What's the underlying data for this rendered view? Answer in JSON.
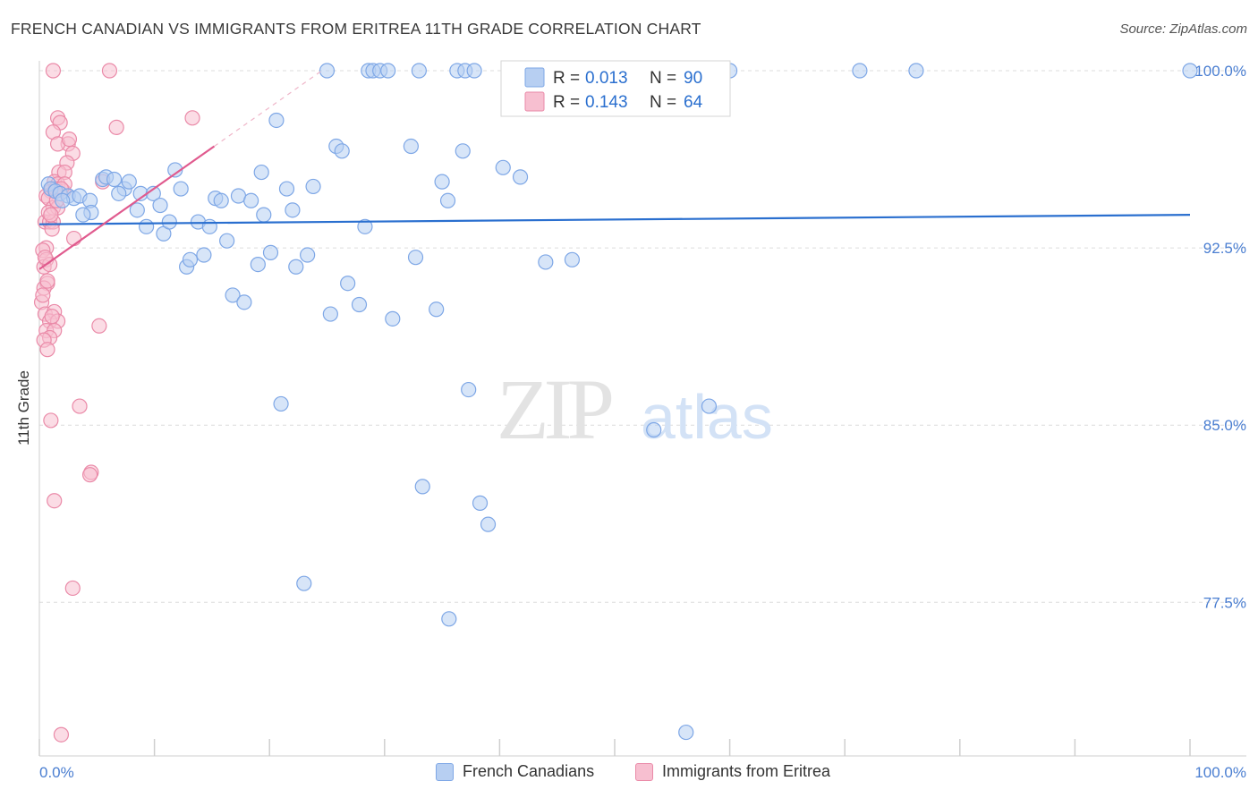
{
  "header": {
    "title": "FRENCH CANADIAN VS IMMIGRANTS FROM ERITREA 11TH GRADE CORRELATION CHART",
    "source": "Source: ZipAtlas.com"
  },
  "watermark": {
    "zip": "ZIP",
    "atlas": "atlas"
  },
  "colors": {
    "blue_fill": "#b7cff2",
    "blue_stroke": "#7ea7e6",
    "blue_line": "#2a6fcf",
    "pink_fill": "#f7bfd0",
    "pink_stroke": "#ea8aa8",
    "pink_line": "#e05a8e",
    "tick_label": "#4a7ed1",
    "grid": "#dcdcdc"
  },
  "legend_top": [
    {
      "r_label": "R =",
      "r_value": "0.013",
      "n_label": "N =",
      "n_value": "90"
    },
    {
      "r_label": "R =",
      "r_value": "0.143",
      "n_label": "N =",
      "n_value": "64"
    }
  ],
  "chart_data": {
    "type": "scatter",
    "xlabel": "",
    "ylabel": "11th Grade",
    "xlim": [
      0,
      100
    ],
    "ylim": [
      71.5,
      100.8
    ],
    "x_tick_labels": [
      "0.0%",
      "100.0%"
    ],
    "y_ticks": [
      {
        "value": 100.0,
        "label": "100.0%"
      },
      {
        "value": 92.5,
        "label": "92.5%"
      },
      {
        "value": 85.0,
        "label": "85.0%"
      },
      {
        "value": 77.5,
        "label": "77.5%"
      }
    ],
    "grid": true,
    "legend_position": "top-center",
    "series": [
      {
        "name": "French Canadians",
        "color": "blue",
        "trend": {
          "x": [
            0,
            100
          ],
          "y": [
            93.5,
            93.9
          ]
        },
        "points": [
          [
            0.8,
            95.2
          ],
          [
            1.0,
            95.0
          ],
          [
            1.4,
            94.9
          ],
          [
            1.8,
            94.8
          ],
          [
            2.5,
            94.7
          ],
          [
            3.0,
            94.6
          ],
          [
            3.5,
            94.7
          ],
          [
            4.4,
            94.5
          ],
          [
            4.5,
            94.0
          ],
          [
            5.5,
            95.4
          ],
          [
            5.8,
            95.5
          ],
          [
            6.5,
            95.4
          ],
          [
            7.4,
            95.0
          ],
          [
            7.8,
            95.3
          ],
          [
            8.5,
            94.1
          ],
          [
            8.8,
            94.8
          ],
          [
            9.3,
            93.4
          ],
          [
            9.9,
            94.8
          ],
          [
            10.5,
            94.3
          ],
          [
            10.8,
            93.1
          ],
          [
            11.3,
            93.6
          ],
          [
            11.8,
            95.8
          ],
          [
            12.3,
            95.0
          ],
          [
            12.8,
            91.7
          ],
          [
            13.1,
            92.0
          ],
          [
            13.8,
            93.6
          ],
          [
            14.3,
            92.2
          ],
          [
            14.8,
            93.4
          ],
          [
            15.3,
            94.6
          ],
          [
            15.8,
            94.5
          ],
          [
            16.3,
            92.8
          ],
          [
            16.8,
            90.5
          ],
          [
            17.3,
            94.7
          ],
          [
            17.8,
            90.2
          ],
          [
            18.4,
            94.5
          ],
          [
            19.0,
            91.8
          ],
          [
            19.3,
            95.7
          ],
          [
            19.5,
            93.9
          ],
          [
            20.1,
            92.3
          ],
          [
            20.6,
            97.9
          ],
          [
            21.0,
            85.9
          ],
          [
            21.5,
            95.0
          ],
          [
            22.0,
            94.1
          ],
          [
            22.3,
            91.7
          ],
          [
            23.0,
            78.3
          ],
          [
            23.3,
            92.2
          ],
          [
            23.8,
            95.1
          ],
          [
            25.0,
            100.0
          ],
          [
            25.3,
            89.7
          ],
          [
            25.8,
            96.8
          ],
          [
            26.3,
            96.6
          ],
          [
            26.8,
            91.0
          ],
          [
            27.8,
            90.1
          ],
          [
            28.3,
            93.4
          ],
          [
            28.6,
            100.0
          ],
          [
            29.0,
            100.0
          ],
          [
            29.6,
            100.0
          ],
          [
            30.3,
            100.0
          ],
          [
            30.7,
            89.5
          ],
          [
            32.3,
            96.8
          ],
          [
            32.7,
            92.1
          ],
          [
            33.0,
            100.0
          ],
          [
            33.3,
            82.4
          ],
          [
            34.5,
            89.9
          ],
          [
            35.0,
            95.3
          ],
          [
            35.5,
            94.5
          ],
          [
            36.3,
            100.0
          ],
          [
            36.8,
            96.6
          ],
          [
            37.0,
            100.0
          ],
          [
            37.3,
            86.5
          ],
          [
            37.8,
            100.0
          ],
          [
            38.3,
            81.7
          ],
          [
            39.0,
            80.8
          ],
          [
            40.3,
            95.9
          ],
          [
            41.8,
            95.5
          ],
          [
            44.0,
            91.9
          ],
          [
            46.3,
            92.0
          ],
          [
            47.3,
            100.0
          ],
          [
            47.9,
            100.0
          ],
          [
            53.4,
            84.8
          ],
          [
            56.2,
            72.0
          ],
          [
            58.2,
            85.8
          ],
          [
            60.0,
            100.0
          ],
          [
            71.3,
            100.0
          ],
          [
            76.2,
            100.0
          ],
          [
            35.6,
            76.8
          ],
          [
            100.0,
            100.0
          ],
          [
            2.0,
            94.5
          ],
          [
            6.9,
            94.8
          ],
          [
            3.8,
            93.9
          ]
        ]
      },
      {
        "name": "Immigrants from Eritrea",
        "color": "pink",
        "trend": {
          "x": [
            0,
            15.2
          ],
          "y": [
            91.6,
            96.8
          ]
        },
        "points": [
          [
            1.2,
            100.0
          ],
          [
            6.1,
            100.0
          ],
          [
            1.6,
            98.0
          ],
          [
            1.8,
            97.8
          ],
          [
            6.7,
            97.6
          ],
          [
            1.2,
            97.4
          ],
          [
            2.5,
            96.9
          ],
          [
            1.6,
            96.9
          ],
          [
            2.9,
            96.5
          ],
          [
            2.4,
            96.1
          ],
          [
            1.7,
            95.7
          ],
          [
            2.2,
            95.7
          ],
          [
            13.3,
            98.0
          ],
          [
            1.3,
            95.3
          ],
          [
            1.6,
            95.2
          ],
          [
            5.5,
            95.3
          ],
          [
            1.0,
            94.9
          ],
          [
            0.6,
            94.7
          ],
          [
            1.3,
            94.9
          ],
          [
            2.1,
            94.9
          ],
          [
            0.8,
            94.6
          ],
          [
            1.2,
            94.2
          ],
          [
            0.5,
            93.6
          ],
          [
            1.6,
            94.2
          ],
          [
            0.9,
            93.6
          ],
          [
            1.2,
            93.6
          ],
          [
            1.1,
            93.3
          ],
          [
            0.6,
            92.5
          ],
          [
            3.0,
            92.9
          ],
          [
            0.3,
            92.4
          ],
          [
            0.6,
            92.0
          ],
          [
            0.4,
            91.7
          ],
          [
            0.9,
            91.8
          ],
          [
            0.7,
            91.0
          ],
          [
            0.4,
            90.8
          ],
          [
            0.2,
            90.2
          ],
          [
            0.5,
            89.7
          ],
          [
            1.3,
            89.8
          ],
          [
            0.9,
            89.4
          ],
          [
            1.6,
            89.4
          ],
          [
            0.6,
            89.0
          ],
          [
            1.3,
            89.0
          ],
          [
            0.9,
            88.7
          ],
          [
            0.4,
            88.6
          ],
          [
            0.7,
            88.2
          ],
          [
            5.2,
            89.2
          ],
          [
            3.5,
            85.8
          ],
          [
            1.0,
            85.2
          ],
          [
            1.3,
            81.8
          ],
          [
            4.5,
            83.0
          ],
          [
            4.4,
            82.9
          ],
          [
            2.9,
            78.1
          ],
          [
            1.9,
            71.9
          ],
          [
            0.5,
            92.1
          ],
          [
            1.4,
            95.0
          ],
          [
            0.8,
            94.0
          ],
          [
            2.2,
            95.2
          ],
          [
            0.3,
            90.5
          ],
          [
            1.0,
            93.9
          ],
          [
            2.6,
            97.1
          ],
          [
            1.9,
            95.0
          ],
          [
            1.5,
            94.5
          ],
          [
            0.7,
            91.1
          ],
          [
            1.1,
            89.6
          ]
        ]
      }
    ]
  }
}
